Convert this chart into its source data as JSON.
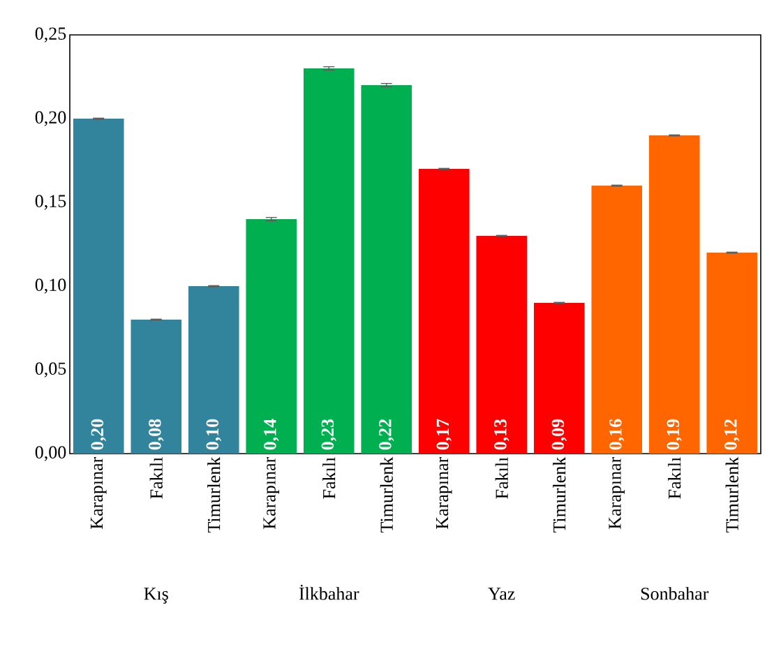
{
  "chart_data": {
    "type": "bar",
    "categories": [
      "Karapınar",
      "Fakılı",
      "Timurlenk",
      "Karapınar",
      "Fakılı",
      "Timurlenk",
      "Karapınar",
      "Fakılı",
      "Timurlenk",
      "Karapınar",
      "Fakılı",
      "Timurlenk"
    ],
    "values": [
      0.2,
      0.08,
      0.1,
      0.14,
      0.23,
      0.22,
      0.17,
      0.13,
      0.09,
      0.16,
      0.19,
      0.12
    ],
    "colors": [
      "#31849b",
      "#31849b",
      "#31849b",
      "#00b050",
      "#00b050",
      "#00b050",
      "#ff0000",
      "#ff0000",
      "#ff0000",
      "#ff6600",
      "#ff6600",
      "#ff6600"
    ],
    "errors": [
      0.0003,
      0.0003,
      0.0003,
      0.001,
      0.001,
      0.001,
      0.0003,
      0.0003,
      0.0003,
      0.0003,
      0.0003,
      0.0003
    ],
    "value_labels": [
      "0,20",
      "0,08",
      "0,10",
      "0,14",
      "0,23",
      "0,22",
      "0,17",
      "0,13",
      "0,09",
      "0,16",
      "0,19",
      "0,12"
    ],
    "annotations": [
      "Kış",
      "İlkbahar",
      "Yaz",
      "Sonbahar"
    ],
    "ylim": [
      0,
      0.25
    ],
    "yticks": [
      {
        "value": 0,
        "label": "0,00"
      },
      {
        "value": 0.05,
        "label": "0,05"
      },
      {
        "value": 0.1,
        "label": "0,10"
      },
      {
        "value": 0.15,
        "label": "0,15"
      },
      {
        "value": 0.2,
        "label": "0,20"
      },
      {
        "value": 0.25,
        "label": "0,25"
      }
    ],
    "grid": false
  }
}
